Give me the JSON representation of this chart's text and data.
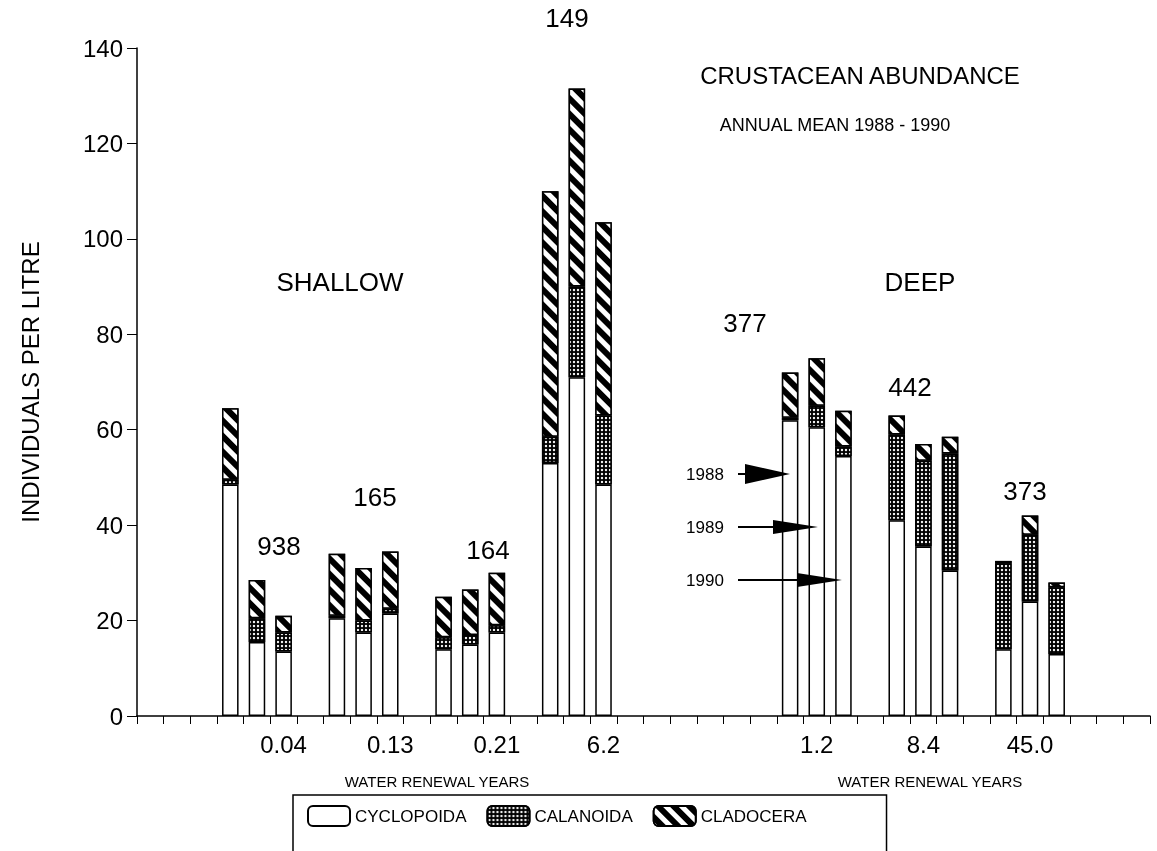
{
  "chart_data": {
    "type": "bar",
    "title": "CRUSTACEAN ABUNDANCE",
    "subtitle": "ANNUAL MEAN 1988 - 1990",
    "ylabel": "INDIVIDUALS PER LITRE",
    "categories": [
      null,
      null,
      null,
      null,
      null,
      "0.04",
      null,
      null,
      null,
      "0.13",
      null,
      null,
      null,
      "0.21",
      null,
      null,
      null,
      "6.2",
      null,
      null,
      null,
      null,
      null,
      null,
      null,
      "1.2",
      null,
      null,
      null,
      "8.4",
      null,
      null,
      null,
      "45.0",
      null,
      null,
      null,
      null
    ],
    "series": [
      {
        "name": "CYCLOPOIDA",
        "color": "#ffffff",
        "values": [
          null,
          null,
          null,
          48.5,
          15.5,
          13.5,
          null,
          20.5,
          17.5,
          21.5,
          null,
          14,
          15,
          17.5,
          null,
          53,
          71,
          48.5,
          null,
          null,
          null,
          null,
          null,
          null,
          62,
          60.5,
          54.5,
          null,
          41,
          35.5,
          30.5,
          null,
          14,
          24,
          13,
          null,
          null,
          null
        ]
      },
      {
        "name": "CALANOIDA",
        "color": "#000000",
        "values": [
          null,
          null,
          null,
          1,
          5,
          4,
          null,
          0.5,
          2.5,
          1,
          null,
          2.5,
          2,
          1.5,
          null,
          5.5,
          19,
          14.5,
          null,
          null,
          null,
          null,
          null,
          null,
          0.5,
          4.5,
          2,
          null,
          18,
          18,
          24.5,
          null,
          18,
          14,
          14,
          null,
          null,
          null
        ]
      },
      {
        "name": "CLADOCERA",
        "color": "#000000",
        "values": [
          null,
          null,
          null,
          15,
          8,
          3.5,
          null,
          13,
          11,
          12,
          null,
          8.5,
          9.5,
          11,
          null,
          51.5,
          41.5,
          40.5,
          null,
          null,
          null,
          null,
          null,
          null,
          9.5,
          10,
          7.5,
          null,
          4,
          3.5,
          3.5,
          null,
          0.5,
          4,
          1,
          null,
          null,
          null
        ]
      }
    ],
    "stacked": true,
    "ylim": [
      0,
      140
    ],
    "yticks": [
      0,
      20,
      40,
      60,
      80,
      100,
      120,
      140
    ],
    "grid": false,
    "legend": "bottom",
    "annotations": [
      "SHALLOW",
      "DEEP",
      "938",
      "165",
      "164",
      "149",
      "377",
      "442",
      "373",
      "1988",
      "1989",
      "1990",
      "WATER RENEWAL YEARS",
      "WATER RENEWAL YEARS"
    ]
  }
}
